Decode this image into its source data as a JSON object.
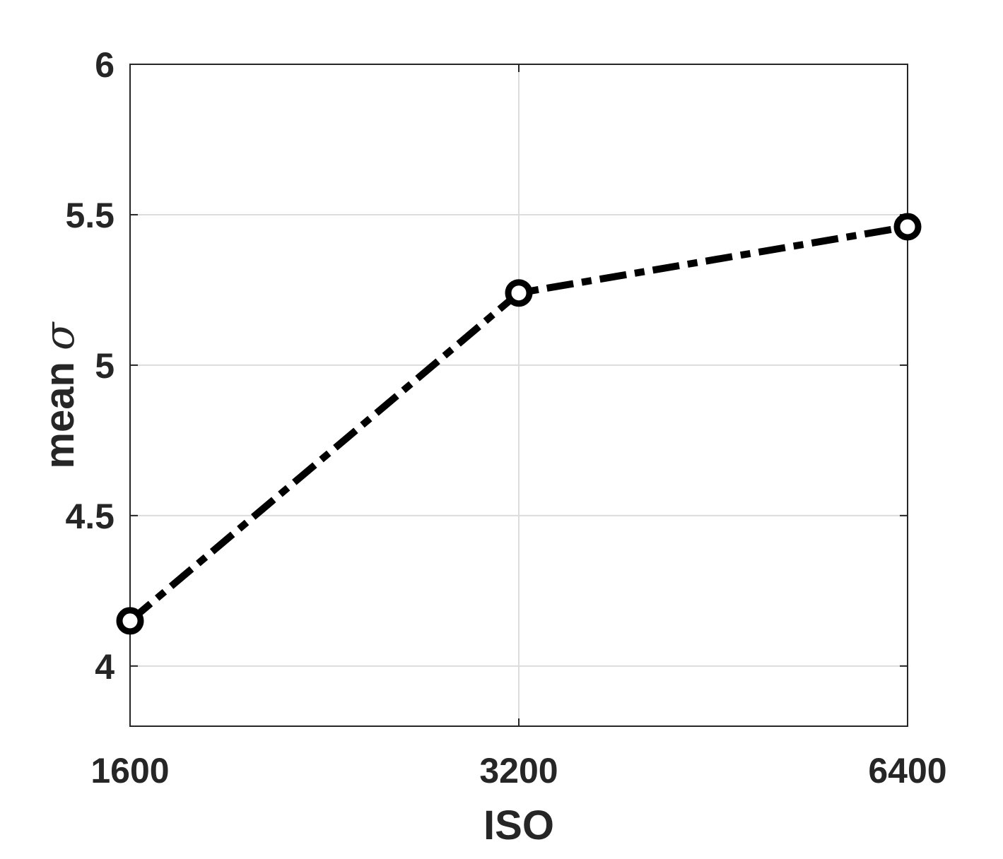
{
  "chart_data": {
    "type": "line",
    "title": "",
    "xlabel": "ISO",
    "ylabel": "mean ",
    "ylabel_symbol": "σ",
    "x_scale": "log2",
    "x": [
      1600,
      3200,
      6400
    ],
    "x_tick_labels": [
      "1600",
      "3200",
      "6400"
    ],
    "xlim": [
      1600,
      6400
    ],
    "ylim": [
      3.8,
      6
    ],
    "y_ticks": [
      4,
      4.5,
      5,
      5.5,
      6
    ],
    "y_tick_labels": [
      "4",
      "4.5",
      "5",
      "5.5",
      "6"
    ],
    "grid": true,
    "series": [
      {
        "values": [
          4.15,
          5.24,
          5.46
        ],
        "line_style": "dash-dot",
        "marker": "open-circle",
        "color": "#000000"
      }
    ]
  }
}
